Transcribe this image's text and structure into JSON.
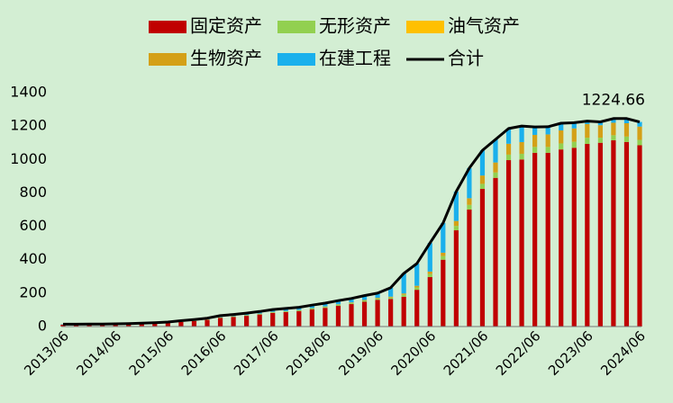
{
  "chart_data": {
    "type": "bar",
    "stacked": true,
    "categories": [
      "2013/06",
      null,
      null,
      null,
      "2014/06",
      null,
      null,
      null,
      "2015/06",
      null,
      null,
      null,
      "2016/06",
      null,
      null,
      null,
      "2017/06",
      null,
      null,
      null,
      "2018/06",
      null,
      null,
      null,
      "2019/06",
      null,
      null,
      null,
      "2020/06",
      null,
      null,
      null,
      "2021/06",
      null,
      null,
      null,
      "2022/06",
      null,
      null,
      null,
      "2023/06",
      null,
      null,
      null,
      "2024/06"
    ],
    "series": [
      {
        "name": "固定资产",
        "color": "#c00000",
        "values": [
          11.2,
          11.2,
          12,
          12,
          12.8,
          14.4,
          16,
          18.4,
          21.6,
          28,
          33.6,
          40,
          52,
          57.6,
          64,
          72,
          81.6,
          86.4,
          92,
          102.4,
          112,
          124,
          134.4,
          148,
          160,
          165,
          178,
          220,
          296,
          400,
          576,
          700,
          824,
          890,
          996,
          1000,
          1040,
          1040,
          1060,
          1070,
          1093,
          1100,
          1115,
          1105,
          1085
        ]
      },
      {
        "name": "无形资产",
        "color": "#92d050",
        "values": [
          0.6,
          0.6,
          0.6,
          0.6,
          0.6,
          0.7,
          0.8,
          0.9,
          1.1,
          1.4,
          1.7,
          2,
          2.6,
          2.9,
          3.2,
          3.6,
          4.1,
          4.3,
          4.6,
          5.1,
          5.6,
          6.2,
          6.7,
          7.4,
          8,
          9,
          12,
          14,
          18,
          22,
          26,
          28,
          30,
          32,
          33,
          34,
          35,
          35,
          36,
          36,
          37,
          30,
          30,
          32,
          32
        ]
      },
      {
        "name": "油气资产",
        "color": "#ffc000",
        "values": [
          0,
          0,
          0,
          0,
          0,
          0,
          0,
          0,
          0,
          0,
          0,
          0,
          0,
          0,
          0,
          0,
          0,
          0,
          0,
          0,
          0,
          0,
          0,
          0,
          0,
          0,
          0,
          0,
          0,
          0,
          0,
          0,
          0,
          0,
          0,
          0,
          0,
          0,
          0,
          0,
          0,
          0,
          0,
          0,
          0
        ]
      },
      {
        "name": "生物资产",
        "color": "#d4a017",
        "values": [
          0.3,
          0.3,
          0.3,
          0.3,
          0.3,
          0.4,
          0.4,
          0.5,
          0.5,
          0.7,
          0.8,
          1,
          1.3,
          1.4,
          1.6,
          1.8,
          2,
          2.2,
          2.3,
          2.6,
          2.8,
          3.1,
          3.4,
          3.7,
          4,
          5,
          8,
          10,
          15,
          20,
          30,
          40,
          50,
          60,
          65,
          70,
          72,
          75,
          78,
          80,
          82,
          75,
          75,
          80,
          80
        ]
      },
      {
        "name": "在建工程",
        "color": "#1ab0ec",
        "values": [
          1.9,
          1.9,
          2.1,
          2.1,
          2.3,
          2.5,
          2.8,
          3.2,
          3.8,
          4.9,
          5.9,
          7,
          9.1,
          10.1,
          11.2,
          12.6,
          14.3,
          15.1,
          16.1,
          17.9,
          19.6,
          21.7,
          23.5,
          25.9,
          28,
          53,
          120,
          133,
          171,
          178,
          176,
          180,
          151,
          138,
          91,
          96,
          48,
          46,
          43,
          34,
          18,
          20,
          25,
          28,
          27.66
        ]
      },
      {
        "name": "合计",
        "color": "#000000",
        "type": "line",
        "values": [
          14,
          14,
          15,
          15,
          16,
          18,
          20,
          23,
          27,
          35,
          42,
          50,
          65,
          72,
          80,
          90,
          102,
          108,
          115,
          128,
          140,
          155,
          168,
          185,
          200,
          232,
          318,
          377,
          500,
          620,
          808,
          948,
          1055,
          1120,
          1185,
          1200,
          1195,
          1196,
          1217,
          1220,
          1230,
          1225,
          1245,
          1245,
          1224.66
        ]
      }
    ],
    "ylim": [
      0,
      1400
    ],
    "yticks": [
      0,
      200,
      400,
      600,
      800,
      1000,
      1200,
      1400
    ],
    "grid": false
  }
}
